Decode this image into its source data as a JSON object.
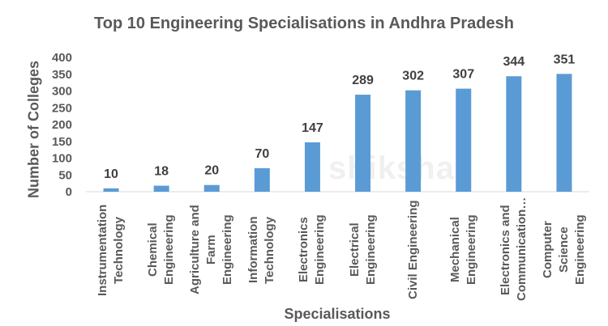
{
  "watermark": "shiksha",
  "chart_data": {
    "type": "bar",
    "title": "Top 10 Engineering Specialisations in Andhra Pradesh",
    "xlabel": "Specialisations",
    "ylabel": "Number of Colleges",
    "ylim": [
      0,
      400
    ],
    "yticks": [
      0,
      50,
      100,
      150,
      200,
      250,
      300,
      350,
      400
    ],
    "grid": false,
    "legend": "none",
    "bar_color": "#5B9BD5",
    "categories": [
      "Instrumentation Technology",
      "Chemical Engineering",
      "Agriculture and Farm Engineering",
      "Information Technology",
      "Electronics Engineering",
      "Electrical Engineering",
      "Civil Engineering",
      "Mechanical Engineering",
      "Electronics and Communication…",
      "Computer Science Engineering"
    ],
    "category_lines": [
      "Instrumentation\nTechnology",
      "Chemical\nEngineering",
      "Agriculture and\nFarm Engineering",
      "Information\nTechnology",
      "Electronics\nEngineering",
      "Electrical\nEngineering",
      "Civil Engineering",
      "Mechanical\nEngineering",
      "Electronics and\nCommunication…",
      "Computer Science\nEngineering"
    ],
    "values": [
      10,
      18,
      20,
      70,
      147,
      289,
      302,
      307,
      344,
      351
    ]
  }
}
